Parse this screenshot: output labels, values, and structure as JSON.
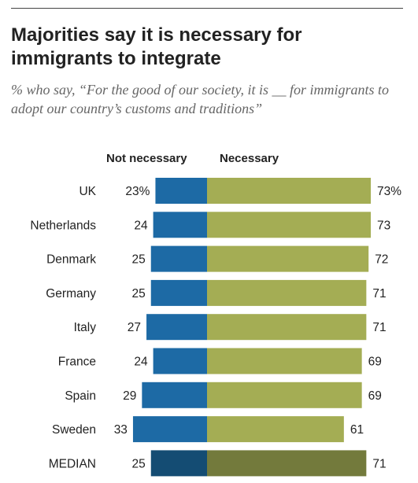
{
  "title": "Majorities say it is necessary for immigrants to integrate",
  "subtitle": "% who say, “For the good of our society, it is __ for immigrants to adopt our country’s customs and traditions”",
  "colors": {
    "not_necessary": "#1d6aa5",
    "necessary": "#a4ad54",
    "not_necessary_median": "#144c73",
    "necessary_median": "#737a3c"
  },
  "chart_data": {
    "type": "bar",
    "orientation": "horizontal-diverging",
    "categories": [
      "UK",
      "Netherlands",
      "Denmark",
      "Germany",
      "Italy",
      "France",
      "Spain",
      "Sweden",
      "MEDIAN"
    ],
    "series": [
      {
        "name": "Not necessary",
        "values": [
          23,
          24,
          25,
          25,
          27,
          24,
          29,
          33,
          25
        ]
      },
      {
        "name": "Necessary",
        "values": [
          73,
          73,
          72,
          71,
          71,
          69,
          69,
          61,
          71
        ]
      }
    ],
    "value_labels": {
      "not_necessary": [
        "23%",
        "24",
        "25",
        "25",
        "27",
        "24",
        "29",
        "33",
        "25"
      ],
      "necessary": [
        "73%",
        "73",
        "72",
        "71",
        "71",
        "69",
        "69",
        "61",
        "71"
      ]
    },
    "legend": [
      "Not necessary",
      "Necessary"
    ],
    "legend_position": "top"
  }
}
